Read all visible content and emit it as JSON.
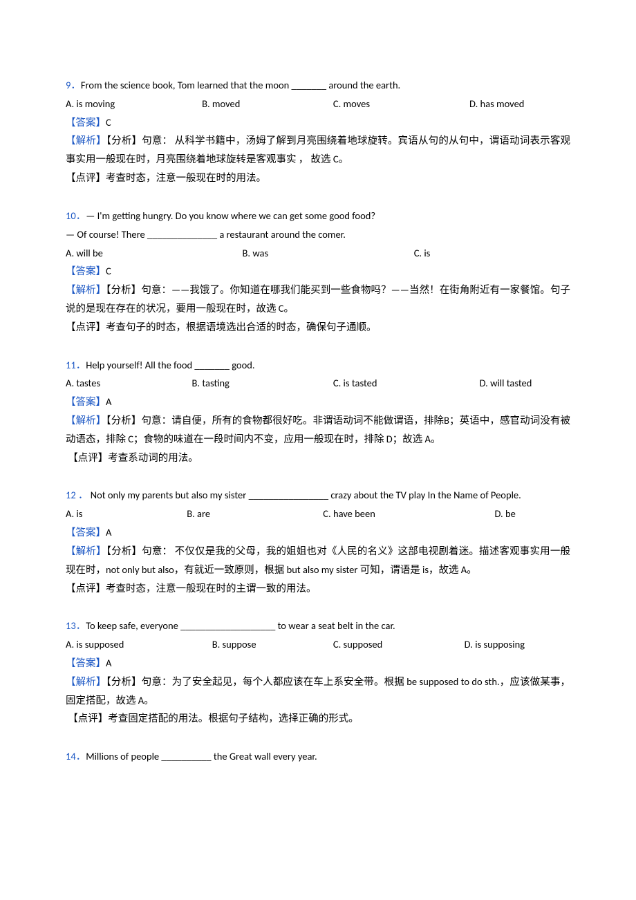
{
  "colors": {
    "accent": "#1a56c4",
    "text": "#000000",
    "background": "#ffffff"
  },
  "typography": {
    "font_family": "Calibri / Microsoft YaHei / SimSun",
    "font_size_pt": 11,
    "line_height": 1.85
  },
  "labels": {
    "answer_open": "【答案】",
    "analysis_open": "【解析】",
    "fenxi": "【分析】",
    "dianping": "【点评】"
  },
  "questions": [
    {
      "num": "9．",
      "stem": "From the science book, Tom learned that the moon _______ around the earth.",
      "options": [
        {
          "label": "A. is moving",
          "width": "27%"
        },
        {
          "label": "B. moved",
          "width": "26%"
        },
        {
          "label": "C. moves",
          "width": "27%"
        },
        {
          "label": "D. has moved",
          "width": "20%"
        }
      ],
      "answer": "C",
      "analysis": "句意： 从科学书籍中，汤姆了解到月亮围绕着地球旋转。宾语从句的从句中，谓语动词表示客观事实用一般现在时，月亮围绕着地球旋转是客观事实 ， 故选 C。",
      "dianping": "考查时态，注意一般现在时的用法。"
    },
    {
      "num": "10．",
      "stem": "— I'm getting hungry. Do you know where we can get some good food?",
      "stem2": "— Of course! There ______________ a restaurant around the comer.",
      "options": [
        {
          "label": "A. will be",
          "width": "35%"
        },
        {
          "label": "B. was",
          "width": "34%"
        },
        {
          "label": "C. is",
          "width": "31%"
        }
      ],
      "answer": "C",
      "analysis": "句意：——我饿了。你知道在哪我们能买到一些食物吗？——当然！在街角附近有一家餐馆。句子说的是现在存在的状况，要用一般现在时，故选 C。",
      "dianping": "考查句子的时态，根据语境选出合适的时态，确保句子通顺。"
    },
    {
      "num": "11．",
      "stem": "Help yourself! All the food _______ good.",
      "options": [
        {
          "label": "A. tastes",
          "width": "25%"
        },
        {
          "label": "B. tasting",
          "width": "28%"
        },
        {
          "label": "C. is tasted",
          "width": "29%"
        },
        {
          "label": "D. will tasted",
          "width": "18%"
        }
      ],
      "answer": "A",
      "analysis": "句意：请自便，所有的食物都很好吃。非谓语动词不能做谓语，排除B；英语中，感官动词没有被动语态，排除 C；食物的味道在一段时间内不变，应用一般现在时，排除 D；故选 A。",
      "dianping": "考查系动词的用法。"
    },
    {
      "num": "12 ．",
      "stem": " Not only my parents but also my sister ________________ crazy about the TV play In the Name of People.",
      "options": [
        {
          "label": "A. is",
          "width": "24%"
        },
        {
          "label": "B. are",
          "width": "27%"
        },
        {
          "label": "C. have been",
          "width": "34%"
        },
        {
          "label": "D. be",
          "width": "15%"
        }
      ],
      "answer": "A",
      "analysis": "句意： 不仅仅是我的父母，我的姐姐也对《人民的名义》这部电视剧着迷。描述客观事实用一般现在时，not only but also，有就近一致原则，根据 but also my sister 可知，谓语是 is，故选 A。",
      "dianping": "考查时态，注意一般现在时的主谓一致的用法。"
    },
    {
      "num": "13．",
      "stem": "To keep safe, everyone ___________________ to wear a seat belt in the car.",
      "options": [
        {
          "label": "A. is supposed",
          "width": "29%"
        },
        {
          "label": "B. suppose",
          "width": "24%"
        },
        {
          "label": "C. supposed",
          "width": "26%"
        },
        {
          "label": "D. is supposing",
          "width": "21%"
        }
      ],
      "answer": "A",
      "analysis": "句意：为了安全起见，每个人都应该在车上系安全带。根据 be supposed to do sth.，应该做某事，固定搭配，故选 A。",
      "dianping": "考查固定搭配的用法。根据句子结构，选择正确的形式。"
    },
    {
      "num": "14．",
      "stem": "Millions of people __________ the Great wall every year.",
      "options": [],
      "answer": "",
      "analysis": "",
      "dianping": ""
    }
  ]
}
